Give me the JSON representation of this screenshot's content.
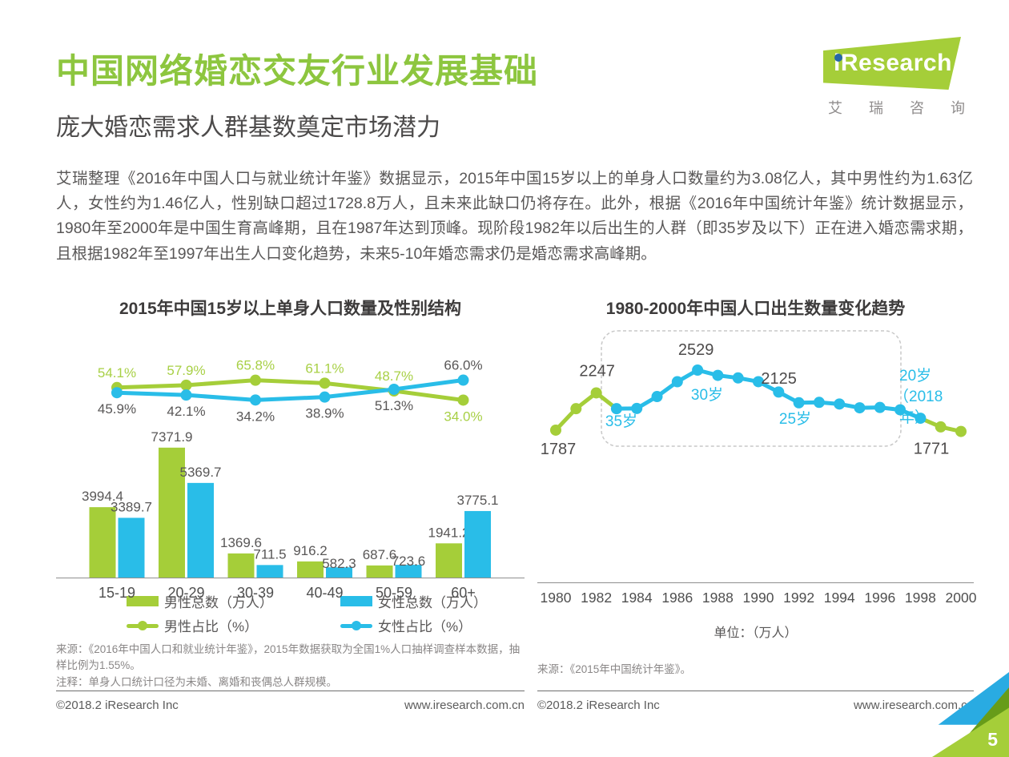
{
  "page": {
    "title": "中国网络婚恋交友行业发展基础",
    "subtitle": "庞大婚恋需求人群基数奠定市场潜力",
    "intro": "艾瑞整理《2016年中国人口与就业统计年鉴》数据显示，2015年中国15岁以上的单身人口数量约为3.08亿人，其中男性约为1.63亿人，女性约为1.46亿人，性别缺口超过1728.8万人，且未来此缺口仍将存在。此外，根据《2016年中国统计年鉴》统计数据显示，1980年至2000年是中国生育高峰期，且在1987年达到顶峰。现阶段1982年以后出生的人群（即35岁及以下）正在进入婚恋需求期，且根据1982年至1997年出生人口变化趋势，未来5-10年婚恋需求仍是婚恋需求高峰期。",
    "page_number": "5"
  },
  "logo": {
    "brand": "iResearch",
    "caption": "艾 瑞 咨 询"
  },
  "footer": {
    "copyright": "©2018.2 iResearch Inc",
    "url": "www.iresearch.com.cn"
  },
  "colors": {
    "green": "#a5ce39",
    "blue": "#29bde8",
    "title_green": "#8dc63f",
    "green_label_text": "#a8d046",
    "dark_text": "#595757",
    "value_label_text": "#4d4b4b",
    "note_text": "#8a8787"
  },
  "chart_data": [
    {
      "type": "bar",
      "title": "2015年中国15岁以上单身人口数量及性别结构",
      "categories": [
        "15-19",
        "20-29",
        "30-39",
        "40-49",
        "50-59",
        "60+"
      ],
      "series": [
        {
          "name": "男性总数（万人）",
          "kind": "bar",
          "color": "green",
          "values": [
            3994.4,
            7371.9,
            1369.6,
            916.2,
            687.6,
            1941.2
          ]
        },
        {
          "name": "女性总数（万人）",
          "kind": "bar",
          "color": "blue",
          "values": [
            3389.7,
            5369.7,
            711.5,
            582.3,
            723.6,
            3775.1
          ]
        },
        {
          "name": "男性占比（%）",
          "kind": "line",
          "color": "green",
          "values": [
            54.1,
            57.9,
            65.8,
            61.1,
            48.7,
            34.0
          ]
        },
        {
          "name": "女性占比（%）",
          "kind": "line",
          "color": "blue",
          "values": [
            45.9,
            42.1,
            34.2,
            38.9,
            51.3,
            66.0
          ]
        }
      ],
      "ylim": [
        0,
        8000
      ],
      "grid": false,
      "legend_position": "bottom",
      "source": "来源：《2016年中国人口和就业统计年鉴》，2015年数据获取为全国1%人口抽样调查样本数据，抽样比例为1.55%。",
      "note": "注释：单身人口统计口径为未婚、离婚和丧偶总人群规模。"
    },
    {
      "type": "line",
      "title": "1980-2000年中国人口出生数量变化趋势",
      "x": [
        1980,
        1981,
        1982,
        1983,
        1984,
        1985,
        1986,
        1987,
        1988,
        1989,
        1990,
        1991,
        1992,
        1993,
        1994,
        1995,
        1996,
        1997,
        1998,
        1999,
        2000
      ],
      "values": [
        1787,
        2052,
        2247,
        2052,
        2055,
        2202,
        2385,
        2529,
        2464,
        2432,
        2386,
        2258,
        2125,
        2130,
        2110,
        2063,
        2067,
        2038,
        1934,
        1827,
        1771
      ],
      "green_point_indices": [
        0,
        1,
        2,
        19,
        20
      ],
      "point_labels": [
        {
          "index": 0,
          "text": "1787",
          "pos": "below"
        },
        {
          "index": 2,
          "text": "2247",
          "pos": "above"
        },
        {
          "index": 7,
          "text": "2529",
          "pos": "above"
        },
        {
          "index": 12,
          "text": "2125",
          "pos": "above-left"
        },
        {
          "index": 20,
          "text": "1771",
          "pos": "below"
        }
      ],
      "age_annotations": [
        {
          "text": "35岁",
          "lines": [
            "35岁"
          ]
        },
        {
          "text": "30岁",
          "lines": [
            "30岁"
          ]
        },
        {
          "text": "25岁",
          "lines": [
            "25岁"
          ]
        },
        {
          "text": "20岁（2018年）",
          "lines": [
            "20岁",
            "（2018",
            "年）"
          ]
        }
      ],
      "highlight_box_years": [
        1983,
        1998
      ],
      "x_ticks": [
        "1980",
        "1982",
        "1984",
        "1986",
        "1988",
        "1990",
        "1992",
        "1994",
        "1996",
        "1998",
        "2000"
      ],
      "ylim": [
        1700,
        2600
      ],
      "grid": false,
      "unit": "单位：（万人）",
      "source": "来源：《2015年中国统计年鉴》。"
    }
  ]
}
